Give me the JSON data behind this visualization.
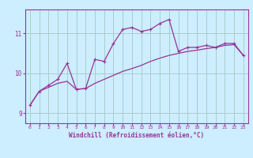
{
  "x_values": [
    0,
    1,
    2,
    3,
    4,
    5,
    6,
    7,
    8,
    9,
    10,
    11,
    12,
    13,
    14,
    15,
    16,
    17,
    18,
    19,
    20,
    21,
    22,
    23
  ],
  "line1_y": [
    9.2,
    9.55,
    9.7,
    9.85,
    10.25,
    9.6,
    9.62,
    10.35,
    10.3,
    10.75,
    11.1,
    11.15,
    11.05,
    11.1,
    11.25,
    11.35,
    10.55,
    10.65,
    10.65,
    10.7,
    10.65,
    10.75,
    10.75,
    10.45
  ],
  "line2_y": [
    9.2,
    9.55,
    9.65,
    9.75,
    9.8,
    9.6,
    9.62,
    9.75,
    9.85,
    9.95,
    10.05,
    10.12,
    10.2,
    10.3,
    10.38,
    10.45,
    10.5,
    10.55,
    10.58,
    10.62,
    10.65,
    10.7,
    10.72,
    10.45
  ],
  "bg_color": "#cceeff",
  "grid_color": "#aacccc",
  "line_color": "#993399",
  "xlabel": "Windchill (Refroidissement éolien,°C)",
  "yticks": [
    9,
    10,
    11
  ],
  "xticks": [
    0,
    1,
    2,
    3,
    4,
    5,
    6,
    7,
    8,
    9,
    10,
    11,
    12,
    13,
    14,
    15,
    16,
    17,
    18,
    19,
    20,
    21,
    22,
    23
  ],
  "ylim": [
    8.75,
    11.6
  ],
  "xlim": [
    -0.5,
    23.5
  ]
}
